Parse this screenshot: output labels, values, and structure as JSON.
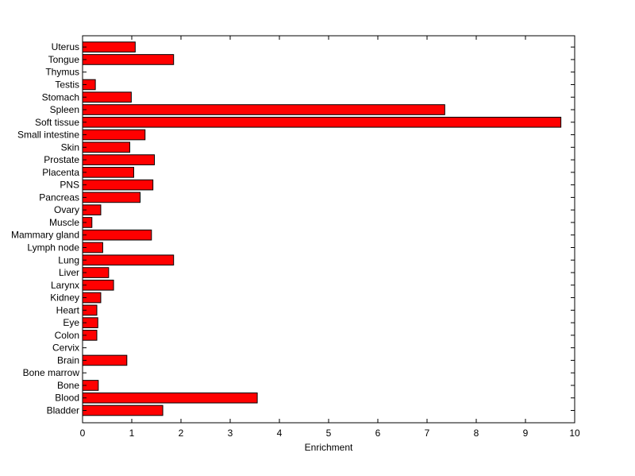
{
  "chart_data": {
    "type": "bar",
    "orientation": "horizontal",
    "categories": [
      "Bladder",
      "Blood",
      "Bone",
      "Bone marrow",
      "Brain",
      "Cervix",
      "Colon",
      "Eye",
      "Heart",
      "Kidney",
      "Larynx",
      "Liver",
      "Lung",
      "Lymph node",
      "Mammary gland",
      "Muscle",
      "Ovary",
      "Pancreas",
      "PNS",
      "Placenta",
      "Prostate",
      "Skin",
      "Small intestine",
      "Soft tissue",
      "Spleen",
      "Stomach",
      "Testis",
      "Thymus",
      "Tongue",
      "Uterus"
    ],
    "values": [
      1.63,
      3.55,
      0.32,
      0,
      0.9,
      0,
      0.29,
      0.31,
      0.29,
      0.37,
      0.63,
      0.53,
      1.85,
      0.41,
      1.4,
      0.19,
      0.37,
      1.17,
      1.43,
      1.04,
      1.46,
      0.96,
      1.27,
      9.72,
      7.36,
      0.99,
      0.26,
      0,
      1.85,
      1.07
    ],
    "xlabel": "Enrichment",
    "ylabel": "",
    "title": "",
    "xlim": [
      0,
      10
    ],
    "xticks": [
      "0",
      "1",
      "2",
      "3",
      "4",
      "5",
      "6",
      "7",
      "8",
      "9",
      "10"
    ],
    "grid": false,
    "bar_color": "#ff0000",
    "edge_color": "#000000"
  }
}
